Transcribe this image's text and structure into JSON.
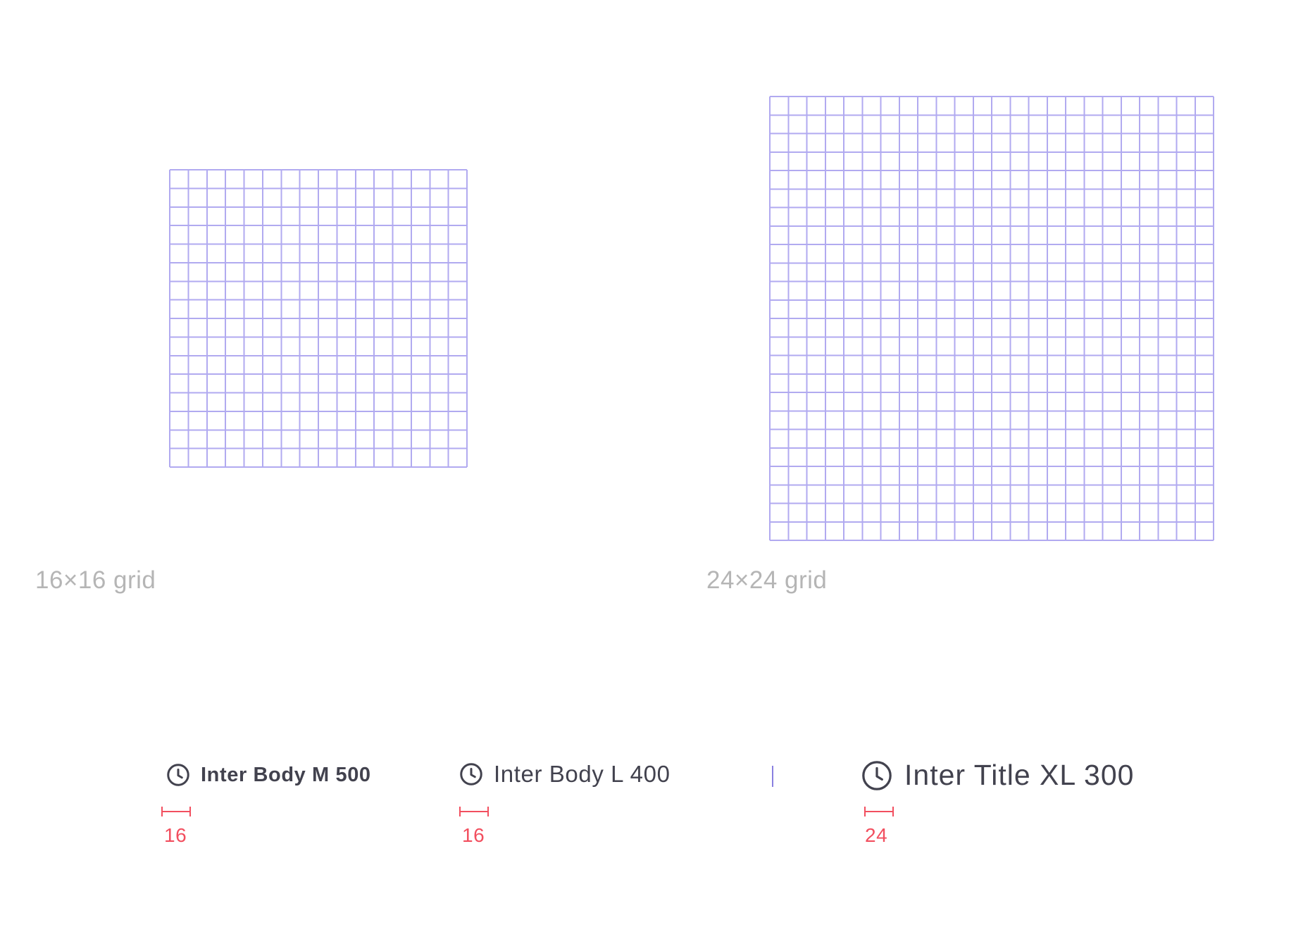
{
  "grids": [
    {
      "caption": "16×16 grid",
      "cells": 16
    },
    {
      "caption": "24×24 grid",
      "cells": 24
    }
  ],
  "samples": [
    {
      "label": "Inter Body M 500",
      "icon": "clock-icon",
      "size": "16"
    },
    {
      "label": "Inter Body L 400",
      "icon": "clock-icon",
      "size": "16"
    },
    {
      "label": "Inter Title XL 300",
      "icon": "clock-icon",
      "size": "24"
    }
  ],
  "colors": {
    "grid": "#b1aaf0",
    "caption": "#b5b5b5",
    "text": "#42424e",
    "measure": "#f24f5f",
    "divider": "#8a80e0"
  }
}
